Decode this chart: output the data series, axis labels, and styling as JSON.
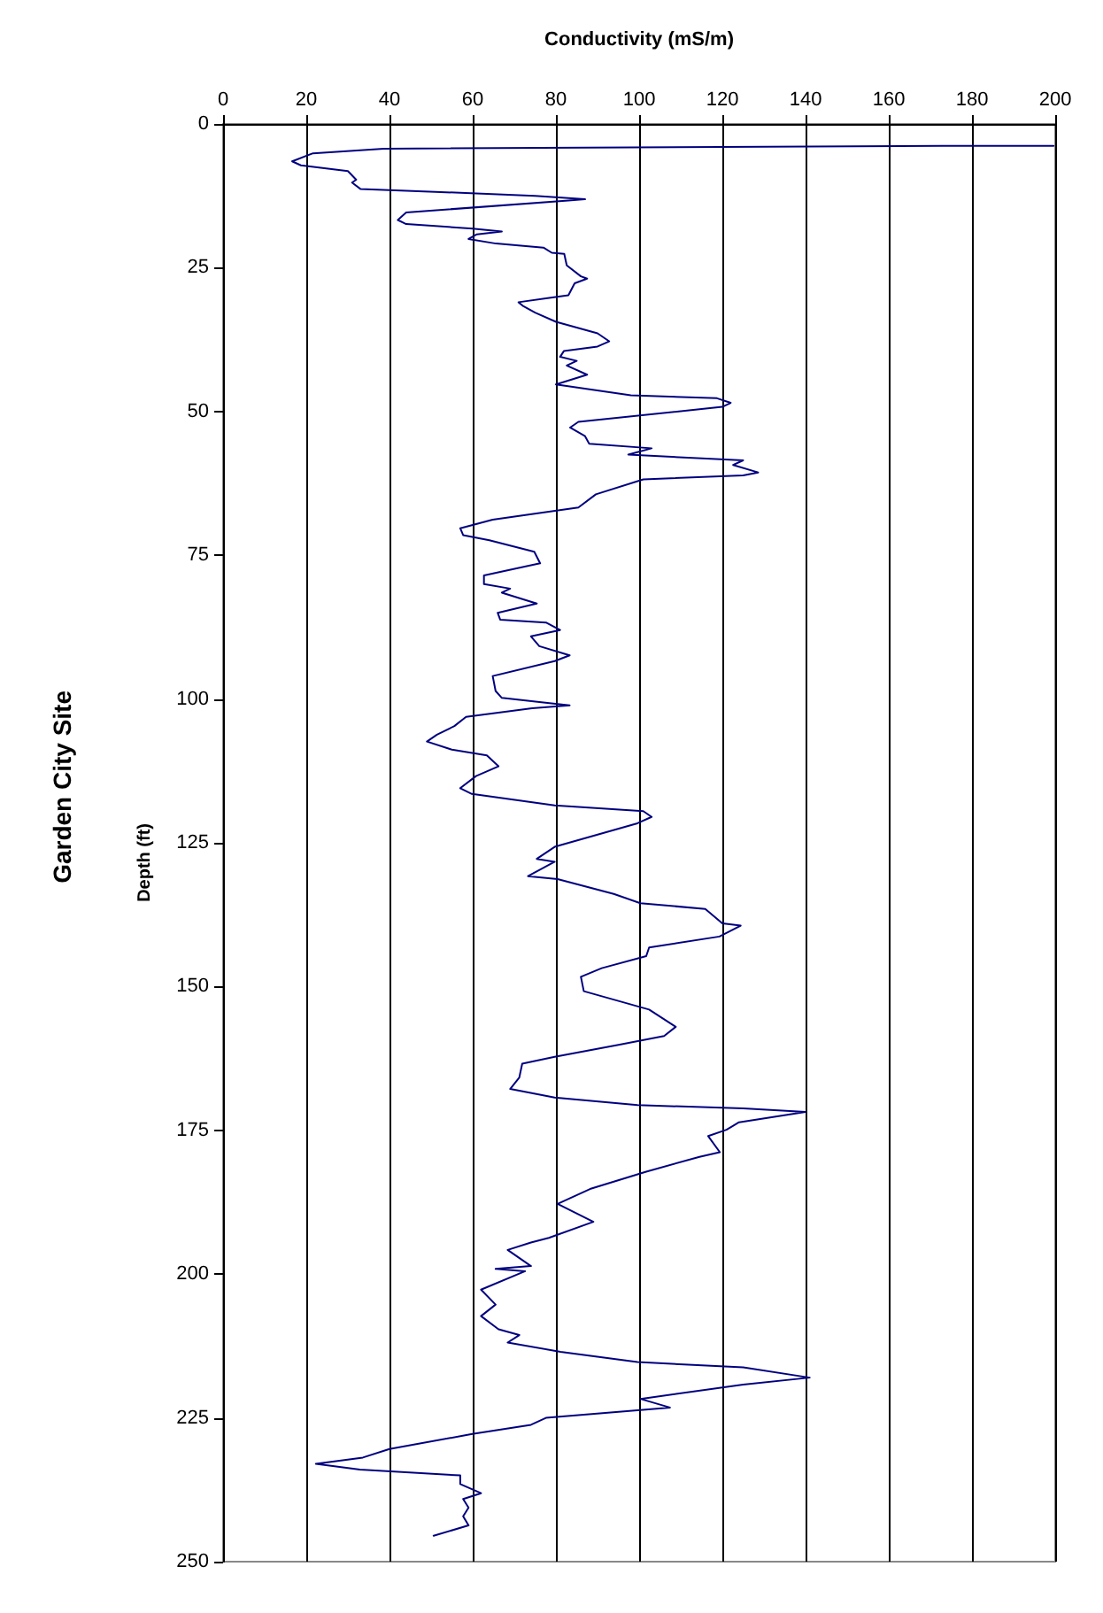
{
  "chart_data": {
    "type": "line",
    "title": "Garden City Site",
    "xlabel": "Conductivity (mS/m)",
    "ylabel": "Depth (ft)",
    "xlim": [
      0,
      200
    ],
    "xticks": [
      0,
      20,
      40,
      60,
      80,
      100,
      120,
      140,
      160,
      180,
      200
    ],
    "ylim": [
      250,
      0
    ],
    "yticks": [
      0,
      25,
      50,
      75,
      100,
      125,
      150,
      175,
      200,
      225,
      250
    ],
    "grid": "x",
    "marker": "none",
    "line_style": "solid",
    "series": [
      {
        "color": "#000080",
        "x": [
          199.6,
          173,
          173,
          38.6,
          21.6,
          16.6,
          18.7,
          30,
          32,
          31,
          33,
          51,
          75,
          87,
          83,
          44,
          42,
          44,
          60,
          67,
          61,
          59,
          65.6,
          77,
          79,
          82,
          82.6,
          86,
          87.5,
          84.5,
          83,
          78,
          71,
          72,
          75,
          80,
          90,
          92.8,
          90,
          81.9,
          81,
          85,
          82.6,
          87.5,
          80,
          98,
          118.7,
          122,
          120,
          85.4,
          83.4,
          87,
          88,
          103,
          97.4,
          125,
          122.6,
          128.6,
          125,
          101,
          89.6,
          85.4,
          64.8,
          57,
          57.7,
          64,
          74.8,
          76.2,
          62.7,
          62.7,
          69,
          67,
          75.4,
          66,
          66.6,
          77.6,
          81,
          74,
          76,
          83.3,
          79.7,
          64.8,
          65.5,
          67,
          77,
          83.3,
          74.3,
          58.4,
          55.6,
          51.4,
          49,
          55,
          63.4,
          66.2,
          60.8,
          57,
          59.8,
          79.7,
          101,
          103,
          99.6,
          79.7,
          75.4,
          79.7,
          73.3,
          80.4,
          93.9,
          100.3,
          115.9,
          120,
          124.4,
          119.3,
          102.4,
          101.7,
          91,
          86,
          86.7,
          102.4,
          108.8,
          106,
          95.3,
          79.7,
          71.9,
          71.2,
          69,
          79.7,
          99.6,
          125,
          140,
          124,
          121,
          116.6,
          119.4,
          114.5,
          101.7,
          88.2,
          80.4,
          89,
          78.3,
          74,
          68.4,
          74,
          65.5,
          72.6,
          62,
          65.5,
          62,
          66.2,
          71.2,
          68.4,
          81.1,
          99.6,
          125,
          141,
          125,
          100.3,
          107.4,
          77.6,
          74,
          59.9,
          40,
          33.6,
          22.3,
          32.9,
          57,
          57,
          62,
          57.7,
          59,
          57.7,
          59,
          50.6
        ],
        "values": [
          3.8,
          3.8,
          4,
          4.3,
          5.1,
          6.5,
          7.2,
          8.2,
          9.7,
          10.2,
          11.3,
          11.8,
          12.5,
          13.1,
          13.3,
          15.4,
          16.7,
          17.4,
          18.2,
          18.7,
          19.2,
          20,
          20.8,
          21.5,
          22.4,
          22.6,
          24.6,
          26.5,
          26.9,
          27.7,
          29.8,
          30.3,
          31,
          31.6,
          32.8,
          34.4,
          36.4,
          37.8,
          38.7,
          39.5,
          40.5,
          41.2,
          42,
          43.6,
          45.3,
          47.2,
          47.7,
          48.5,
          49.2,
          51.8,
          52.8,
          54.3,
          55.6,
          56.4,
          57.5,
          58.5,
          59.3,
          60.6,
          61.1,
          61.8,
          64.4,
          66.7,
          68.8,
          70.3,
          71.5,
          72.4,
          74.4,
          76.4,
          78.5,
          80,
          80.8,
          81.5,
          83.4,
          85,
          86.2,
          86.7,
          88,
          89.1,
          90.8,
          92.4,
          93.4,
          96,
          98.6,
          99.8,
          100.6,
          101.1,
          101.6,
          103.1,
          104.7,
          106.2,
          107.4,
          108.8,
          109.8,
          111.7,
          113.4,
          115.5,
          116.5,
          118.5,
          119.5,
          120.5,
          121.6,
          125.7,
          127.8,
          128.3,
          130.8,
          131.3,
          133.9,
          135.5,
          136.5,
          139,
          139.4,
          141.3,
          143.2,
          144.7,
          146.8,
          148.3,
          150.8,
          154,
          157,
          158.6,
          160.1,
          162.2,
          163.4,
          165.8,
          167.8,
          169.3,
          170.6,
          171.2,
          171.8,
          173.6,
          174.9,
          176,
          178.8,
          179.6,
          182.2,
          185.2,
          187.8,
          190.9,
          193.7,
          194.5,
          195.8,
          198.6,
          199.1,
          199.5,
          202.7,
          205.3,
          207.3,
          209.6,
          210.6,
          211.9,
          213.5,
          215.3,
          216.2,
          218,
          219.2,
          221.7,
          223.2,
          225,
          226.2,
          227.8,
          230.4,
          231.9,
          233,
          234,
          235,
          236.5,
          238.1,
          239.1,
          240.6,
          242.1,
          243.7,
          245.5
        ]
      }
    ]
  }
}
